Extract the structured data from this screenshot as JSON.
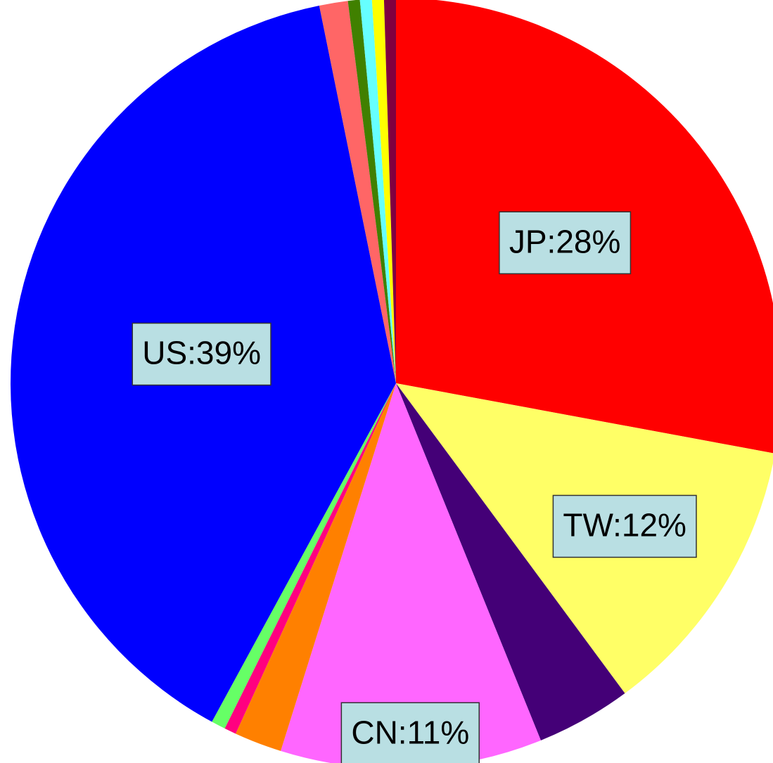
{
  "chart_data": {
    "type": "pie",
    "categories": [
      "JP",
      "TW",
      null,
      "CN",
      null,
      null,
      null,
      "US",
      null,
      null,
      null,
      null,
      null
    ],
    "values": [
      28,
      12,
      4,
      11,
      2,
      0.5,
      0.6,
      39,
      1.2,
      0.5,
      0.5,
      0.5,
      0.5
    ],
    "value_labels": [
      "JP:28%",
      "TW:12%",
      null,
      "CN:11%",
      null,
      null,
      null,
      "US:39%",
      null,
      null,
      null,
      null,
      null
    ],
    "colors": [
      "#ff0000",
      "#ffff66",
      "#440077",
      "#ff66ff",
      "#ff8000",
      "#ff0080",
      "#66ff66",
      "#0000ff",
      "#ff6666",
      "#408000",
      "#66ffff",
      "#ffff00",
      "#800040"
    ]
  }
}
